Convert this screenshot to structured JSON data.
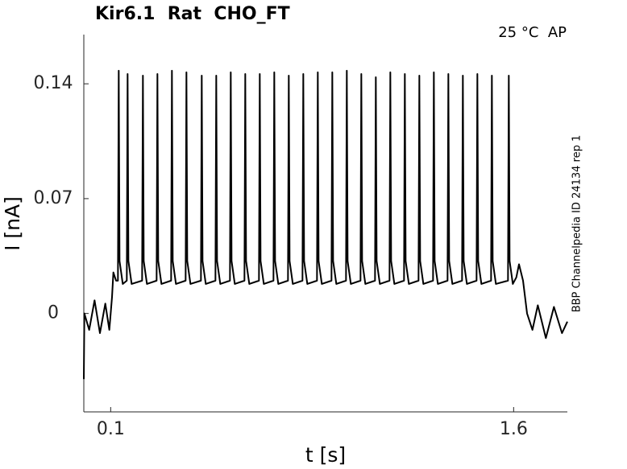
{
  "chart_data": {
    "type": "line",
    "title": "Kir6.1  Rat  CHO_FT",
    "annotation": "25 °C  AP",
    "side_label": "BBP Channelpedia ID 24134 rep 1",
    "x_label": "t [s]",
    "y_label": "I [nA]",
    "color": "#000000",
    "xlim": [
      0,
      1.8
    ],
    "ylim": [
      -0.06,
      0.17
    ],
    "xticks": [
      0.1,
      1.6
    ],
    "yticks": [
      0,
      0.07,
      0.14
    ],
    "grid": false,
    "x": [
      0.0,
      0.002,
      0.02,
      0.04,
      0.06,
      0.08,
      0.095,
      0.105,
      0.11,
      0.12,
      0.127,
      0.13,
      0.133,
      0.145,
      0.16,
      0.163,
      0.166,
      0.178,
      0.217,
      0.22,
      0.223,
      0.235,
      0.271,
      0.274,
      0.277,
      0.289,
      0.325,
      0.328,
      0.331,
      0.343,
      0.379,
      0.382,
      0.385,
      0.397,
      0.436,
      0.439,
      0.442,
      0.454,
      0.49,
      0.493,
      0.496,
      0.508,
      0.544,
      0.547,
      0.55,
      0.562,
      0.598,
      0.601,
      0.604,
      0.616,
      0.652,
      0.655,
      0.658,
      0.67,
      0.706,
      0.709,
      0.712,
      0.724,
      0.76,
      0.763,
      0.766,
      0.778,
      0.814,
      0.817,
      0.82,
      0.832,
      0.868,
      0.871,
      0.874,
      0.886,
      0.922,
      0.925,
      0.928,
      0.94,
      0.976,
      0.979,
      0.982,
      0.994,
      1.03,
      1.033,
      1.036,
      1.048,
      1.084,
      1.087,
      1.09,
      1.102,
      1.138,
      1.141,
      1.144,
      1.156,
      1.192,
      1.195,
      1.198,
      1.21,
      1.246,
      1.249,
      1.252,
      1.264,
      1.3,
      1.303,
      1.306,
      1.318,
      1.354,
      1.357,
      1.36,
      1.372,
      1.408,
      1.411,
      1.414,
      1.426,
      1.462,
      1.465,
      1.468,
      1.48,
      1.516,
      1.519,
      1.522,
      1.534,
      1.579,
      1.582,
      1.585,
      1.597,
      1.61,
      1.62,
      1.635,
      1.65,
      1.67,
      1.69,
      1.72,
      1.75,
      1.78,
      1.8
    ],
    "values": [
      -0.04,
      0.0,
      -0.01,
      0.008,
      -0.012,
      0.006,
      -0.01,
      0.01,
      0.025,
      0.02,
      0.02,
      0.148,
      0.032,
      0.018,
      0.02,
      0.146,
      0.032,
      0.018,
      0.02,
      0.145,
      0.032,
      0.018,
      0.02,
      0.146,
      0.032,
      0.018,
      0.02,
      0.148,
      0.032,
      0.018,
      0.02,
      0.147,
      0.032,
      0.018,
      0.02,
      0.145,
      0.032,
      0.018,
      0.02,
      0.145,
      0.032,
      0.018,
      0.02,
      0.147,
      0.032,
      0.018,
      0.02,
      0.146,
      0.032,
      0.018,
      0.02,
      0.146,
      0.032,
      0.018,
      0.02,
      0.147,
      0.032,
      0.018,
      0.02,
      0.145,
      0.032,
      0.018,
      0.02,
      0.146,
      0.032,
      0.018,
      0.02,
      0.147,
      0.032,
      0.018,
      0.02,
      0.147,
      0.032,
      0.018,
      0.02,
      0.148,
      0.032,
      0.018,
      0.02,
      0.146,
      0.032,
      0.018,
      0.02,
      0.144,
      0.032,
      0.018,
      0.02,
      0.147,
      0.032,
      0.018,
      0.02,
      0.146,
      0.032,
      0.018,
      0.02,
      0.145,
      0.032,
      0.018,
      0.02,
      0.147,
      0.032,
      0.018,
      0.02,
      0.146,
      0.032,
      0.018,
      0.02,
      0.145,
      0.032,
      0.018,
      0.02,
      0.146,
      0.032,
      0.018,
      0.02,
      0.145,
      0.032,
      0.018,
      0.02,
      0.145,
      0.032,
      0.018,
      0.022,
      0.03,
      0.02,
      0.0,
      -0.01,
      0.005,
      -0.015,
      0.004,
      -0.012,
      -0.005
    ]
  }
}
